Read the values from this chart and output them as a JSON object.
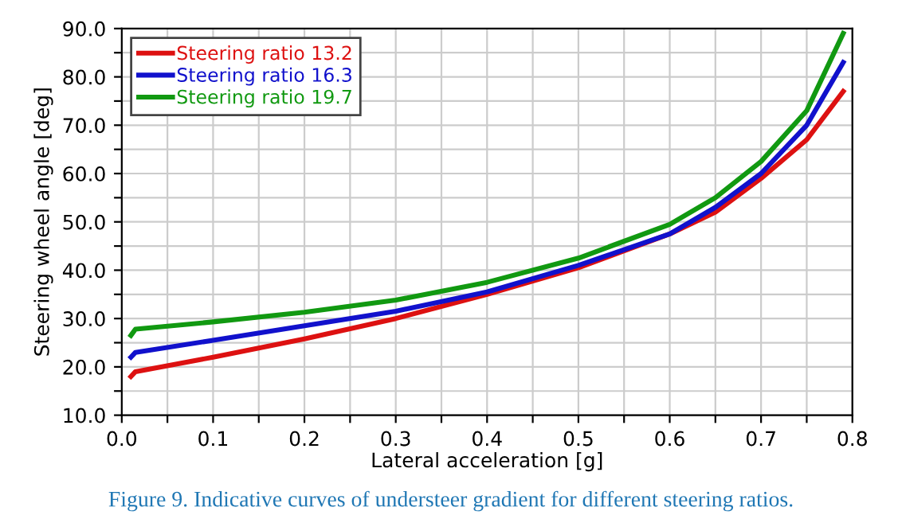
{
  "chart_data": {
    "type": "line",
    "xlabel": "Lateral acceleration [g]",
    "ylabel": "Steering wheel angle [deg]",
    "annotations": [
      "Figure 9. Indicative curves of understeer gradient for different steering ratios."
    ],
    "xlim": [
      0,
      0.8
    ],
    "ylim": [
      10,
      90
    ],
    "xticks": [
      {
        "value": 0,
        "label": "0.0"
      },
      {
        "value": 0.05,
        "label": null
      },
      {
        "value": 0.1,
        "label": "0.1"
      },
      {
        "value": 0.15,
        "label": null
      },
      {
        "value": 0.2,
        "label": "0.2"
      },
      {
        "value": 0.25,
        "label": null
      },
      {
        "value": 0.3,
        "label": "0.3"
      },
      {
        "value": 0.35,
        "label": null
      },
      {
        "value": 0.4,
        "label": "0.4"
      },
      {
        "value": 0.45,
        "label": null
      },
      {
        "value": 0.5,
        "label": "0.5"
      },
      {
        "value": 0.55,
        "label": null
      },
      {
        "value": 0.6,
        "label": "0.6"
      },
      {
        "value": 0.65,
        "label": null
      },
      {
        "value": 0.7,
        "label": "0.7"
      },
      {
        "value": 0.75,
        "label": null
      },
      {
        "value": 0.8,
        "label": "0.8"
      }
    ],
    "yticks": [
      {
        "value": 10,
        "label": "10.0"
      },
      {
        "value": 15,
        "label": null
      },
      {
        "value": 20,
        "label": "20.0"
      },
      {
        "value": 25,
        "label": null
      },
      {
        "value": 30,
        "label": "30.0"
      },
      {
        "value": 35,
        "label": null
      },
      {
        "value": 40,
        "label": "40.0"
      },
      {
        "value": 45,
        "label": null
      },
      {
        "value": 50,
        "label": "50.0"
      },
      {
        "value": 55,
        "label": null
      },
      {
        "value": 60,
        "label": "60.0"
      },
      {
        "value": 65,
        "label": null
      },
      {
        "value": 70,
        "label": "70.0"
      },
      {
        "value": 75,
        "label": null
      },
      {
        "value": 80,
        "label": "80.0"
      },
      {
        "value": 85,
        "label": null
      },
      {
        "value": 90,
        "label": "90.0"
      }
    ],
    "grid": true,
    "legend": "top left",
    "marker": "none",
    "line_style": "solid",
    "x": [
      0.01,
      0.015,
      0.1,
      0.2,
      0.3,
      0.4,
      0.5,
      0.6,
      0.65,
      0.7,
      0.75,
      0.79
    ],
    "series": [
      {
        "name": "Steering ratio 13.2",
        "color": "#dd1111",
        "values": [
          18,
          19,
          22,
          25.8,
          30,
          35,
          40.5,
          47.5,
          52,
          59,
          67,
          77
        ]
      },
      {
        "name": "Steering ratio 16.3",
        "color": "#1111cc",
        "values": [
          22,
          23,
          25.5,
          28.5,
          31.5,
          35.5,
          41,
          47.5,
          53,
          60,
          70,
          83
        ]
      },
      {
        "name": "Steering ratio 19.7",
        "color": "#119911",
        "values": [
          26.5,
          27.8,
          29.3,
          31.3,
          33.8,
          37.5,
          42.5,
          49.5,
          55,
          62.5,
          73,
          89
        ]
      }
    ]
  }
}
